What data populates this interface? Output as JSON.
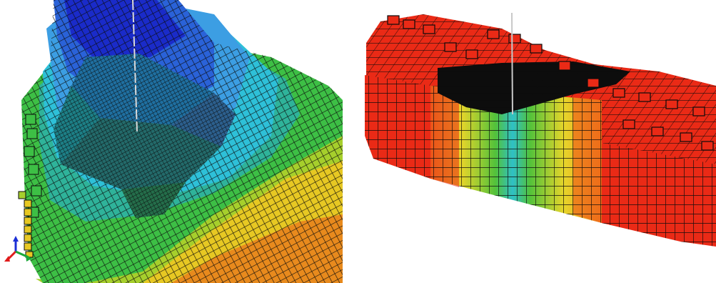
{
  "left_view": {
    "palette": {
      "deep_blue": "#1a2bc9",
      "blue": "#2a62d8",
      "light_blue": "#3c9ee3",
      "cyan": "#2ec0d8",
      "teal": "#2fb39a",
      "green": "#3dbf45",
      "yellow_green": "#a6cf2c",
      "yellow": "#e7c823",
      "orange": "#e88a1d",
      "grid_line": "#0b0b0b"
    },
    "axis_triad": {
      "x_color": "#e01b1b",
      "y_color": "#1ba83a",
      "z_color": "#1b2fd6"
    },
    "well_color": "#d9d9d9"
  },
  "right_view": {
    "palette": {
      "red": "#ea2a16",
      "dark_red": "#b81408",
      "orange": "#ef8a1f",
      "yellow": "#e7d52a",
      "green": "#52c23b",
      "cyan": "#2fc0c6",
      "cavity": "#0d0d0d",
      "grid_line": "#0b0b0b"
    },
    "well_color": "#c8c8c8"
  }
}
